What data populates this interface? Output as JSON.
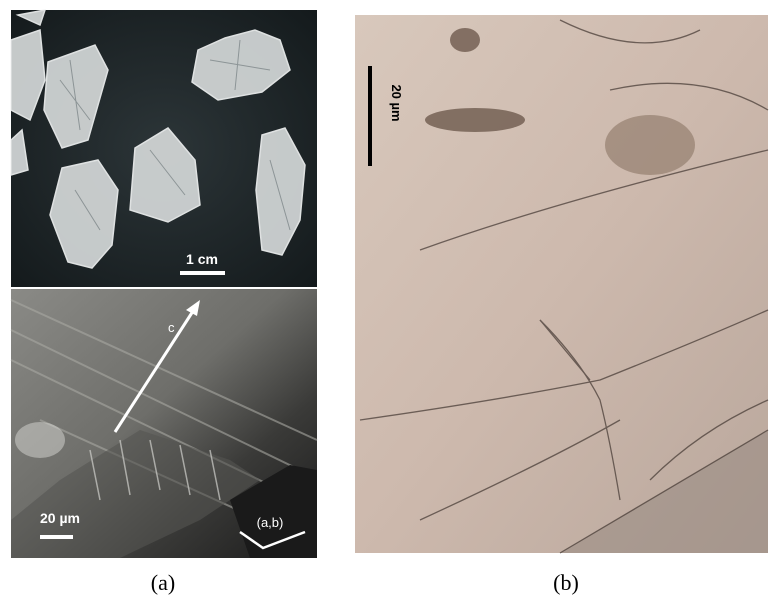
{
  "panels": {
    "a": {
      "label": "(a)",
      "top_scale": "1 cm",
      "bottom_scale": "20 µm",
      "axis_c": "c",
      "axis_ab": "(a,b)"
    },
    "b": {
      "label": "(b)",
      "scale": "20 µm"
    }
  }
}
